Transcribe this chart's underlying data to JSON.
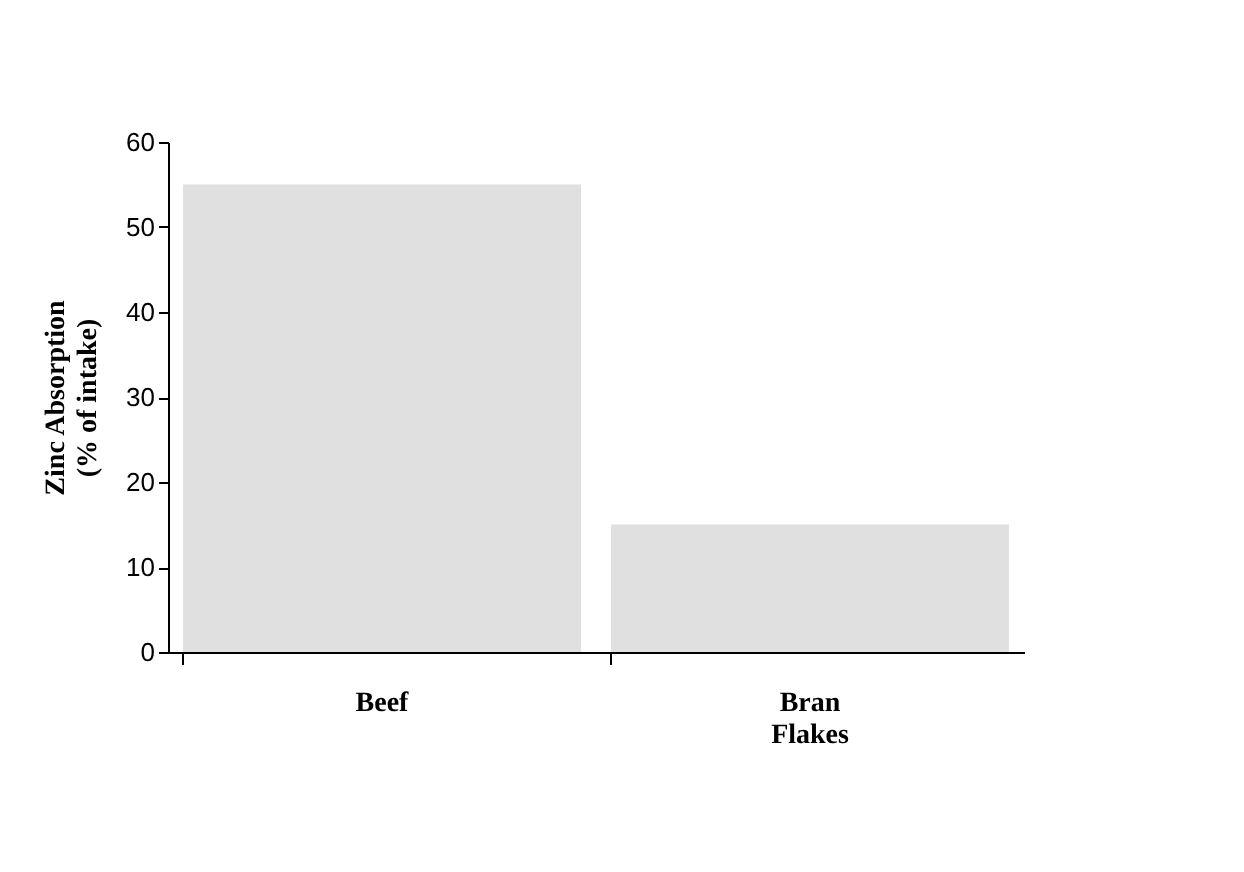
{
  "chart_data": {
    "type": "bar",
    "categories": [
      "Beef",
      "Bran Flakes"
    ],
    "values": [
      55,
      15
    ],
    "color": "#e0e0e0",
    "ylabel": "Zinc Absorption (% of intake)",
    "ylim": [
      0,
      60
    ],
    "yticks": [
      0,
      10,
      20,
      30,
      40,
      50,
      60
    ],
    "grid": false
  }
}
